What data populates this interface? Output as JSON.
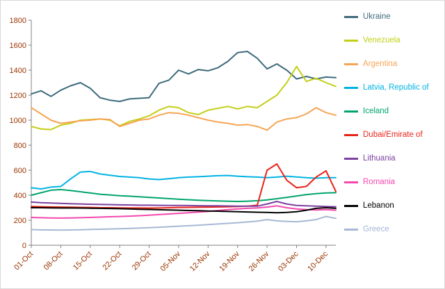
{
  "chart_data": {
    "type": "line",
    "grid": false,
    "legend_position": "right",
    "ylim": [
      0,
      1800
    ],
    "ytick_step": 200,
    "tick_label_color": "#993300",
    "axis_color": "#808080",
    "n_points": 32,
    "x_tick_labels": [
      "01-Oct",
      "08-Oct",
      "15-Oct",
      "22-Oct",
      "29-Oct",
      "05-Nov",
      "12-Nov",
      "19-Nov",
      "26-Nov",
      "03-Dec",
      "10-Dec"
    ],
    "x_tick_indices": [
      0,
      3,
      6,
      9,
      12,
      15,
      18,
      21,
      24,
      27,
      30
    ],
    "series": [
      {
        "name": "Ukraine",
        "slug": "ukraine",
        "color": "#3d6a7b",
        "values": [
          1210,
          1235,
          1190,
          1240,
          1275,
          1300,
          1255,
          1180,
          1160,
          1150,
          1170,
          1175,
          1180,
          1295,
          1320,
          1400,
          1370,
          1405,
          1395,
          1420,
          1470,
          1540,
          1550,
          1495,
          1410,
          1450,
          1400,
          1330,
          1350,
          1330,
          1345,
          1340
        ]
      },
      {
        "name": "Venezuela",
        "slug": "venezuela",
        "color": "#c3cf17",
        "values": [
          950,
          930,
          925,
          960,
          975,
          1000,
          1005,
          1010,
          1000,
          955,
          990,
          1010,
          1035,
          1080,
          1110,
          1100,
          1060,
          1045,
          1080,
          1095,
          1110,
          1090,
          1110,
          1100,
          1150,
          1200,
          1300,
          1430,
          1310,
          1335,
          1300,
          1270
        ]
      },
      {
        "name": "Argentina",
        "slug": "argentina",
        "color": "#f7a454",
        "values": [
          1100,
          1050,
          1000,
          975,
          985,
          995,
          1000,
          1010,
          1005,
          950,
          975,
          1000,
          1010,
          1040,
          1060,
          1055,
          1040,
          1020,
          1000,
          985,
          975,
          960,
          965,
          950,
          920,
          985,
          1010,
          1020,
          1050,
          1100,
          1060,
          1040
        ]
      },
      {
        "name": "Latvia, Republic of",
        "slug": "latvia-republic-of",
        "color": "#00b3e3",
        "values": [
          460,
          450,
          465,
          470,
          530,
          585,
          590,
          570,
          560,
          550,
          545,
          540,
          530,
          525,
          532,
          540,
          545,
          548,
          552,
          556,
          558,
          552,
          548,
          545,
          540,
          545,
          552,
          546,
          540,
          536,
          540,
          540
        ]
      },
      {
        "name": "Iceland",
        "slug": "iceland",
        "color": "#00a46c",
        "values": [
          400,
          420,
          440,
          445,
          438,
          428,
          418,
          408,
          402,
          396,
          392,
          388,
          383,
          378,
          373,
          368,
          364,
          360,
          357,
          354,
          352,
          350,
          352,
          356,
          362,
          372,
          383,
          394,
          405,
          412,
          418,
          420
        ]
      },
      {
        "name": "Dubai/Emirate of",
        "slug": "dubai-emirate-of",
        "color": "#e8231a",
        "values": [
          310,
          308,
          306,
          305,
          304,
          303,
          302,
          300,
          300,
          299,
          298,
          298,
          297,
          298,
          300,
          302,
          303,
          304,
          305,
          306,
          308,
          310,
          312,
          320,
          600,
          650,
          520,
          460,
          470,
          545,
          595,
          430
        ]
      },
      {
        "name": "Lithuania",
        "slug": "lithuania",
        "color": "#7c3fa0",
        "values": [
          345,
          340,
          338,
          335,
          332,
          330,
          328,
          326,
          325,
          323,
          322,
          320,
          320,
          319,
          318,
          318,
          317,
          316,
          315,
          315,
          314,
          313,
          312,
          312,
          330,
          350,
          330,
          318,
          315,
          312,
          310,
          308
        ]
      },
      {
        "name": "Romania",
        "slug": "romania",
        "color": "#f347ae",
        "values": [
          222,
          220,
          218,
          217,
          218,
          220,
          222,
          225,
          228,
          230,
          233,
          236,
          240,
          245,
          250,
          255,
          260,
          265,
          270,
          278,
          285,
          290,
          295,
          298,
          305,
          315,
          300,
          290,
          285,
          282,
          285,
          280
        ]
      },
      {
        "name": "Lebanon",
        "slug": "lebanon",
        "color": "#000000",
        "values": [
          300,
          300,
          299,
          298,
          298,
          297,
          296,
          295,
          294,
          292,
          290,
          288,
          286,
          284,
          282,
          280,
          278,
          276,
          274,
          272,
          270,
          268,
          266,
          264,
          262,
          260,
          262,
          268,
          280,
          295,
          300,
          295
        ]
      },
      {
        "name": "Greece",
        "slug": "greece",
        "color": "#a6b8d4",
        "values": [
          125,
          123,
          122,
          121,
          122,
          124,
          126,
          128,
          130,
          132,
          134,
          137,
          140,
          144,
          148,
          152,
          156,
          160,
          165,
          170,
          175,
          180,
          186,
          192,
          205,
          195,
          190,
          188,
          195,
          205,
          230,
          215
        ]
      }
    ]
  }
}
